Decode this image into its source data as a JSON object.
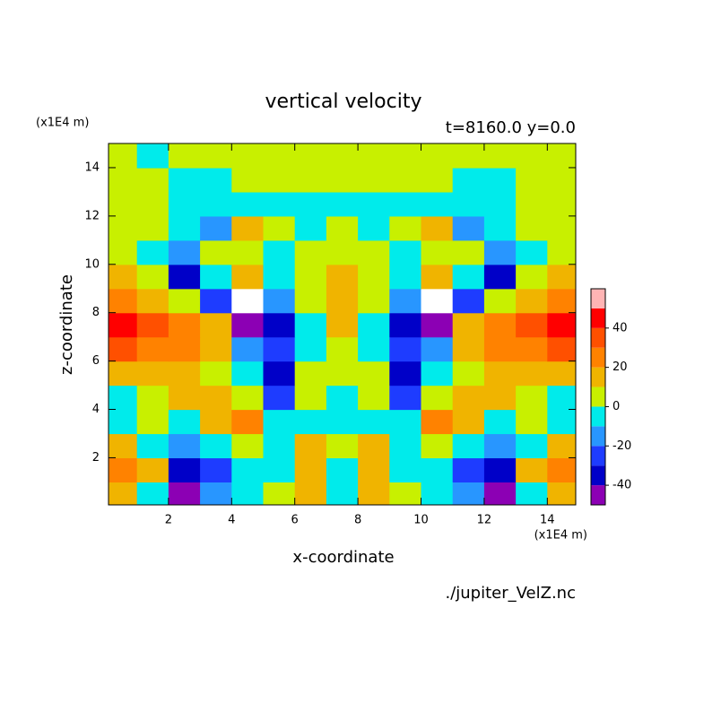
{
  "chart_data": {
    "type": "contour",
    "title": "vertical velocity",
    "subtitle": "t=8160.0 y=0.0",
    "x_label": "x-coordinate",
    "y_label": "z-coordinate",
    "x_unit": "(x1E4 m)",
    "y_unit": "(x1E4 m)",
    "source": "./jupiter_VelZ.nc",
    "xlim": [
      0.1,
      14.9
    ],
    "ylim": [
      0.05,
      15
    ],
    "xticks": [
      2,
      4,
      6,
      8,
      10,
      12,
      14
    ],
    "yticks": [
      2,
      4,
      6,
      8,
      10,
      12,
      14
    ],
    "x": [
      0.5,
      1.5,
      2.5,
      3.5,
      4.5,
      5.5,
      6.5,
      7.5,
      8.5,
      9.5,
      10.5,
      11.5,
      12.5,
      13.5,
      14.5
    ],
    "y": [
      0.5,
      1.5,
      2.5,
      3.5,
      4.5,
      5.5,
      6.5,
      7.5,
      8.5,
      9.5,
      10.5,
      11.5,
      12.5,
      13.5,
      14.5
    ],
    "z": [
      [
        15,
        -5,
        -45,
        -15,
        -5,
        5,
        15,
        -5,
        15,
        5,
        -5,
        -15,
        -45,
        -5,
        15
      ],
      [
        25,
        15,
        -35,
        -25,
        -5,
        -5,
        15,
        -5,
        15,
        -5,
        -5,
        -25,
        -35,
        15,
        25
      ],
      [
        15,
        -5,
        -15,
        -5,
        5,
        -5,
        15,
        5,
        15,
        -5,
        5,
        -5,
        -15,
        -5,
        15
      ],
      [
        -5,
        5,
        -5,
        15,
        25,
        -5,
        -5,
        -5,
        -5,
        -5,
        25,
        15,
        -5,
        5,
        -5
      ],
      [
        -5,
        5,
        15,
        15,
        5,
        -25,
        5,
        -5,
        5,
        -25,
        5,
        15,
        15,
        5,
        -5
      ],
      [
        15,
        15,
        15,
        5,
        -5,
        -35,
        5,
        5,
        5,
        -35,
        -5,
        5,
        15,
        15,
        15
      ],
      [
        35,
        25,
        25,
        15,
        -15,
        -25,
        -5,
        5,
        -5,
        -25,
        -15,
        15,
        25,
        25,
        35
      ],
      [
        45,
        35,
        25,
        15,
        -45,
        -35,
        -5,
        15,
        -5,
        -35,
        -45,
        15,
        25,
        35,
        45
      ],
      [
        25,
        15,
        5,
        -25,
        -55,
        -15,
        5,
        15,
        5,
        -15,
        -55,
        -25,
        5,
        15,
        25
      ],
      [
        15,
        5,
        -35,
        -5,
        15,
        -5,
        5,
        15,
        5,
        -5,
        15,
        -5,
        -35,
        5,
        15
      ],
      [
        5,
        -5,
        -15,
        5,
        5,
        -5,
        5,
        5,
        5,
        -5,
        5,
        5,
        -15,
        -5,
        5
      ],
      [
        5,
        5,
        -5,
        -15,
        15,
        5,
        -5,
        5,
        -5,
        5,
        15,
        -15,
        -5,
        5,
        5
      ],
      [
        5,
        5,
        -5,
        -5,
        -5,
        -5,
        -5,
        -5,
        -5,
        -5,
        -5,
        -5,
        -5,
        5,
        5
      ],
      [
        5,
        5,
        -5,
        -5,
        5,
        5,
        5,
        5,
        5,
        5,
        5,
        -5,
        -5,
        5,
        5
      ],
      [
        5,
        -5,
        5,
        5,
        5,
        5,
        5,
        5,
        5,
        5,
        5,
        5,
        5,
        5,
        5
      ]
    ],
    "levels": [
      -50,
      -40,
      -30,
      -20,
      -10,
      0,
      10,
      20,
      30,
      40,
      50,
      60
    ],
    "colors": [
      "#8c00b4",
      "#0000c8",
      "#1e3cff",
      "#2896ff",
      "#00ebeb",
      "#c8f000",
      "#f0b400",
      "#ff8200",
      "#ff5000",
      "#ff0000",
      "#ffb4b4"
    ],
    "colorbar_ticks": [
      -40,
      -20,
      0,
      20,
      40
    ]
  }
}
